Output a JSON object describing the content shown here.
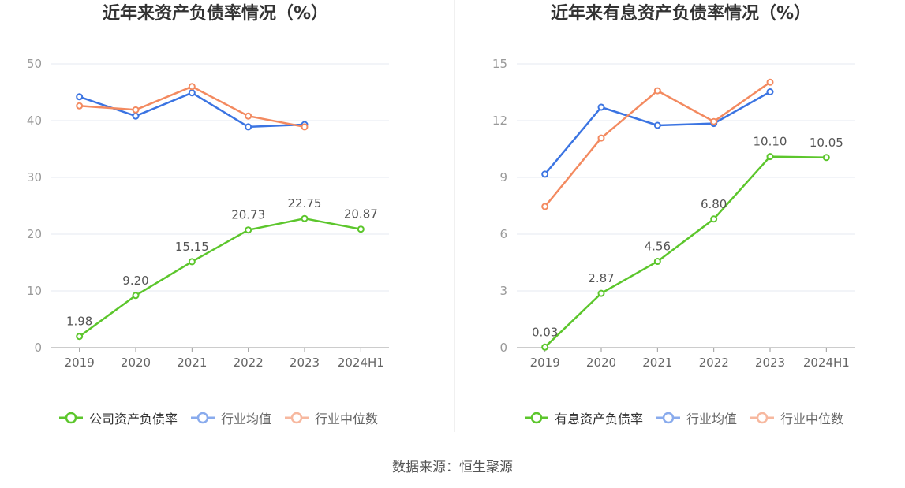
{
  "chart_data": [
    {
      "type": "line",
      "title": "近年来资产负债率情况（%）",
      "categories": [
        "2019",
        "2020",
        "2021",
        "2022",
        "2023",
        "2024H1"
      ],
      "ylim": [
        0,
        50
      ],
      "yticks": [
        0,
        10,
        20,
        30,
        40,
        50
      ],
      "grid": true,
      "legend": "bottom",
      "series": [
        {
          "name": "公司资产负债率",
          "color": "#5cc62c",
          "values": [
            1.98,
            9.2,
            15.15,
            20.73,
            22.75,
            20.87
          ],
          "labels": [
            "1.98",
            "9.20",
            "15.15",
            "20.73",
            "22.75",
            "20.87"
          ]
        },
        {
          "name": "行业均值",
          "color": "#3b74e2",
          "values": [
            44.2,
            40.8,
            44.9,
            38.9,
            39.3,
            null
          ]
        },
        {
          "name": "行业中位数",
          "color": "#f38a60",
          "values": [
            42.6,
            41.9,
            46.0,
            40.8,
            38.9,
            null
          ]
        }
      ]
    },
    {
      "type": "line",
      "title": "近年来有息资产负债率情况（%）",
      "categories": [
        "2019",
        "2020",
        "2021",
        "2022",
        "2023",
        "2024H1"
      ],
      "ylim": [
        0,
        15
      ],
      "yticks": [
        0,
        3,
        6,
        9,
        12,
        15
      ],
      "grid": true,
      "legend": "bottom",
      "series": [
        {
          "name": "有息资产负债率",
          "color": "#5cc62c",
          "values": [
            0.03,
            2.87,
            4.56,
            6.8,
            10.1,
            10.05
          ],
          "labels": [
            "0.03",
            "2.87",
            "4.56",
            "6.80",
            "10.10",
            "10.05"
          ]
        },
        {
          "name": "行业均值",
          "color": "#3b74e2",
          "values": [
            9.17,
            12.71,
            11.75,
            11.85,
            13.52,
            null
          ]
        },
        {
          "name": "行业中位数",
          "color": "#f38a60",
          "values": [
            7.46,
            11.08,
            13.58,
            11.95,
            14.03,
            null
          ]
        }
      ]
    }
  ],
  "source": "数据来源：恒生聚源"
}
